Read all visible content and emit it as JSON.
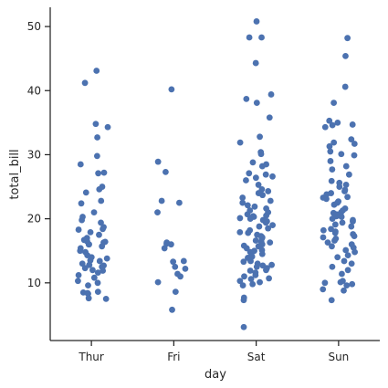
{
  "chart_data": {
    "type": "scatter",
    "subtype": "strip",
    "title": "",
    "xlabel": "day",
    "ylabel": "total_bill",
    "categories": [
      "Thur",
      "Fri",
      "Sat",
      "Sun"
    ],
    "ylim": [
      1,
      53
    ],
    "yticks": [
      10,
      20,
      30,
      40,
      50
    ],
    "grid": false,
    "point_color": "#4c72b0",
    "series": [
      {
        "category": "Thur",
        "values": [
          43.1,
          41.2,
          34.8,
          34.3,
          32.7,
          29.8,
          28.5,
          27.2,
          27.1,
          25.0,
          24.6,
          24.1,
          22.8,
          22.4,
          21.0,
          20.3,
          19.8,
          19.4,
          18.7,
          18.4,
          18.3,
          17.9,
          17.5,
          17.0,
          16.7,
          16.5,
          16.4,
          16.3,
          16.0,
          16.0,
          15.7,
          15.4,
          15.0,
          14.8,
          14.3,
          14.0,
          13.8,
          13.5,
          13.4,
          13.0,
          12.8,
          12.7,
          12.5,
          12.3,
          12.0,
          11.9,
          11.6,
          11.2,
          10.8,
          10.3,
          10.0,
          9.6,
          8.6,
          8.5,
          8.4,
          8.3,
          7.6,
          7.5
        ]
      },
      {
        "category": "Fri",
        "values": [
          40.2,
          28.9,
          27.3,
          22.8,
          22.5,
          21.0,
          16.3,
          16.1,
          16.0,
          15.4,
          13.4,
          13.3,
          12.5,
          12.2,
          11.4,
          11.0,
          10.1,
          8.6,
          5.8
        ]
      },
      {
        "category": "Sat",
        "values": [
          50.8,
          48.3,
          48.3,
          44.3,
          39.4,
          38.7,
          38.1,
          35.8,
          32.8,
          31.9,
          30.4,
          30.1,
          28.8,
          28.5,
          28.2,
          27.1,
          26.9,
          26.6,
          26.4,
          26.0,
          25.3,
          24.6,
          24.3,
          24.0,
          23.7,
          23.3,
          22.8,
          22.5,
          22.1,
          21.9,
          21.6,
          21.3,
          21.0,
          20.7,
          20.5,
          20.4,
          20.3,
          20.1,
          20.0,
          19.8,
          19.6,
          19.4,
          19.0,
          18.8,
          18.5,
          18.2,
          17.9,
          17.8,
          17.5,
          17.3,
          17.1,
          16.9,
          16.6,
          16.4,
          16.3,
          16.0,
          15.8,
          15.7,
          15.4,
          15.1,
          15.0,
          14.8,
          14.5,
          14.3,
          14.1,
          13.9,
          13.4,
          13.3,
          13.0,
          12.8,
          12.7,
          12.5,
          12.3,
          12.0,
          11.9,
          11.6,
          11.2,
          11.0,
          10.7,
          10.6,
          10.3,
          10.1,
          9.8,
          9.6,
          7.7,
          7.3,
          3.1
        ]
      },
      {
        "category": "Sun",
        "values": [
          48.2,
          45.4,
          40.6,
          38.1,
          35.3,
          35.0,
          34.7,
          34.6,
          34.3,
          32.4,
          31.9,
          31.7,
          31.3,
          30.5,
          30.1,
          29.9,
          29.0,
          28.2,
          27.7,
          26.9,
          25.9,
          25.6,
          25.3,
          25.0,
          24.5,
          24.3,
          24.0,
          23.8,
          23.4,
          23.3,
          23.1,
          22.7,
          22.5,
          22.2,
          21.6,
          21.3,
          21.0,
          20.9,
          20.7,
          20.4,
          20.3,
          20.0,
          19.8,
          19.6,
          19.4,
          19.1,
          18.8,
          18.4,
          18.2,
          18.0,
          17.8,
          17.6,
          17.3,
          17.1,
          16.9,
          16.6,
          16.3,
          16.0,
          15.7,
          15.5,
          15.1,
          14.8,
          14.3,
          14.0,
          13.4,
          13.0,
          12.5,
          12.0,
          11.4,
          10.3,
          10.1,
          10.0,
          9.8,
          9.6,
          9.0,
          8.8,
          7.3
        ]
      }
    ]
  }
}
